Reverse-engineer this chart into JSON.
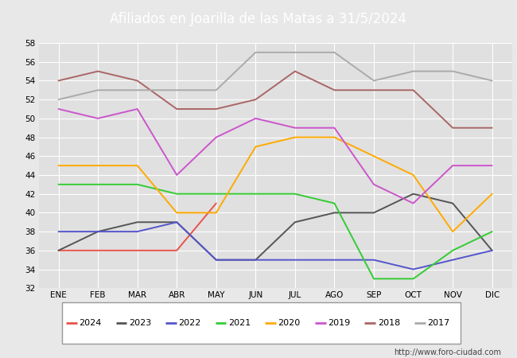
{
  "title": "Afiliados en Joarilla de las Matas a 31/5/2024",
  "header_bg": "#4f81c7",
  "months": [
    "ENE",
    "FEB",
    "MAR",
    "ABR",
    "MAY",
    "JUN",
    "JUL",
    "AGO",
    "SEP",
    "OCT",
    "NOV",
    "DIC"
  ],
  "series": {
    "2024": {
      "color": "#e8534a",
      "data": [
        36,
        36,
        36,
        36,
        41,
        null,
        null,
        null,
        null,
        null,
        null,
        null
      ]
    },
    "2023": {
      "color": "#555555",
      "data": [
        36,
        38,
        39,
        39,
        35,
        35,
        39,
        40,
        40,
        42,
        41,
        36
      ]
    },
    "2022": {
      "color": "#5555cc",
      "data": [
        38,
        38,
        38,
        39,
        35,
        35,
        35,
        35,
        35,
        34,
        35,
        36
      ]
    },
    "2021": {
      "color": "#33cc33",
      "data": [
        43,
        43,
        43,
        42,
        42,
        42,
        42,
        41,
        33,
        33,
        36,
        38
      ]
    },
    "2020": {
      "color": "#ffaa00",
      "data": [
        45,
        45,
        45,
        40,
        40,
        47,
        48,
        48,
        46,
        44,
        38,
        42
      ]
    },
    "2019": {
      "color": "#cc55cc",
      "data": [
        51,
        50,
        51,
        44,
        48,
        50,
        49,
        49,
        43,
        41,
        45,
        45
      ]
    },
    "2018": {
      "color": "#aa6666",
      "data": [
        54,
        55,
        54,
        51,
        51,
        52,
        55,
        53,
        53,
        53,
        49,
        49
      ]
    },
    "2017": {
      "color": "#aaaaaa",
      "data": [
        52,
        53,
        53,
        53,
        53,
        57,
        57,
        57,
        54,
        55,
        55,
        54
      ]
    }
  },
  "legend_order": [
    "2024",
    "2023",
    "2022",
    "2021",
    "2020",
    "2019",
    "2018",
    "2017"
  ],
  "ylim": [
    32,
    58
  ],
  "yticks": [
    32,
    34,
    36,
    38,
    40,
    42,
    44,
    46,
    48,
    50,
    52,
    54,
    56,
    58
  ],
  "bg_color": "#e8e8e8",
  "plot_bg": "#e0e0e0",
  "grid_color": "#ffffff",
  "footer_url": "http://www.foro-ciudad.com"
}
